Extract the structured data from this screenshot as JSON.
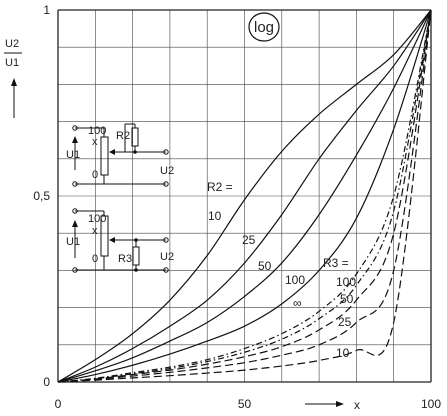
{
  "chart_data": {
    "type": "line",
    "scale_badge": "log",
    "xlabel": "x",
    "ylabel": {
      "numerator": "U2",
      "denominator": "U1"
    },
    "xlim": [
      0,
      100
    ],
    "ylim": [
      0,
      1
    ],
    "x_ticks": [
      "0",
      "50",
      "100"
    ],
    "y_ticks": [
      "0",
      "0,5",
      "1"
    ],
    "x_tick_values": [
      0,
      50,
      100
    ],
    "y_tick_values": [
      0,
      0.5,
      1
    ],
    "grid": true,
    "group_labels": {
      "r2": "R2 =",
      "r3": "R3 ="
    },
    "series": [
      {
        "name": "10",
        "group": "r2",
        "dashed": false,
        "x": [
          0,
          10,
          20,
          30,
          40,
          50,
          60,
          70,
          80,
          90,
          100
        ],
        "y": [
          0,
          0.06,
          0.13,
          0.22,
          0.34,
          0.49,
          0.62,
          0.72,
          0.8,
          0.88,
          1.0
        ]
      },
      {
        "name": "25",
        "group": "r2",
        "dashed": false,
        "x": [
          0,
          10,
          20,
          30,
          40,
          50,
          60,
          70,
          80,
          90,
          100
        ],
        "y": [
          0,
          0.04,
          0.09,
          0.15,
          0.22,
          0.32,
          0.45,
          0.6,
          0.73,
          0.85,
          1.0
        ]
      },
      {
        "name": "50",
        "group": "r2",
        "dashed": false,
        "x": [
          0,
          10,
          20,
          30,
          40,
          50,
          60,
          70,
          80,
          90,
          100
        ],
        "y": [
          0,
          0.03,
          0.065,
          0.11,
          0.16,
          0.23,
          0.32,
          0.45,
          0.61,
          0.79,
          1.0
        ]
      },
      {
        "name": "100",
        "group": "r2",
        "dashed": false,
        "x": [
          0,
          10,
          20,
          30,
          40,
          50,
          60,
          70,
          80,
          90,
          100
        ],
        "y": [
          0,
          0.02,
          0.045,
          0.075,
          0.11,
          0.15,
          0.21,
          0.3,
          0.44,
          0.68,
          1.0
        ]
      },
      {
        "name": "∞",
        "group": "r3",
        "dashed": true,
        "x": [
          0,
          10,
          20,
          30,
          40,
          50,
          60,
          70,
          80,
          90,
          100
        ],
        "y": [
          0,
          0.01,
          0.025,
          0.04,
          0.06,
          0.09,
          0.13,
          0.19,
          0.29,
          0.5,
          1.0
        ]
      },
      {
        "name": "100",
        "group": "r3",
        "dashed": true,
        "x": [
          0,
          10,
          20,
          30,
          40,
          50,
          60,
          70,
          80,
          90,
          100
        ],
        "y": [
          0,
          0.009,
          0.022,
          0.036,
          0.055,
          0.08,
          0.115,
          0.17,
          0.26,
          0.46,
          1.0
        ]
      },
      {
        "name": "50",
        "group": "r3",
        "dashed": true,
        "x": [
          0,
          10,
          20,
          30,
          40,
          50,
          60,
          70,
          80,
          90,
          100
        ],
        "y": [
          0,
          0.008,
          0.02,
          0.032,
          0.048,
          0.068,
          0.095,
          0.14,
          0.22,
          0.4,
          1.0
        ]
      },
      {
        "name": "25",
        "group": "r3",
        "dashed": true,
        "x": [
          0,
          10,
          20,
          30,
          40,
          50,
          60,
          70,
          80,
          90,
          100
        ],
        "y": [
          0,
          0.007,
          0.016,
          0.026,
          0.038,
          0.052,
          0.072,
          0.1,
          0.16,
          0.3,
          1.0
        ]
      },
      {
        "name": "10",
        "group": "r3",
        "dashed": true,
        "x": [
          0,
          10,
          20,
          30,
          40,
          50,
          60,
          70,
          80,
          90,
          100
        ],
        "y": [
          0,
          0.005,
          0.011,
          0.017,
          0.024,
          0.032,
          0.043,
          0.058,
          0.085,
          0.16,
          1.0
        ]
      }
    ]
  },
  "schematic_top": {
    "pot_top": "100",
    "pot_wiper": "x",
    "pot_bottom": "0",
    "input": "U1",
    "load": "R2",
    "output": "U2"
  },
  "schematic_bottom": {
    "pot_top": "100",
    "pot_wiper": "x",
    "pot_bottom": "0",
    "input": "U1",
    "load": "R3",
    "output": "U2"
  },
  "arrows": {
    "x_axis": "→",
    "y_axis": "→"
  }
}
